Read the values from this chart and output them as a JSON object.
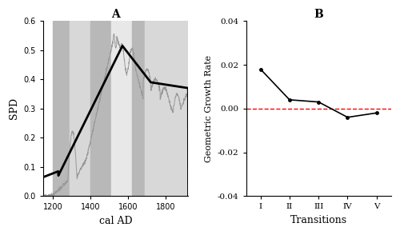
{
  "panel_a_title": "A",
  "panel_b_title": "B",
  "xlabel_a": "cal AD",
  "ylabel_a": "SPD",
  "xlabel_b": "Transitions",
  "ylabel_b": "Geometric Growth Rate",
  "xlim_a": [
    1150,
    1920
  ],
  "ylim_a": [
    0.0,
    0.6
  ],
  "yticks_a": [
    0.0,
    0.1,
    0.2,
    0.3,
    0.4,
    0.5,
    0.6
  ],
  "xticks_a": [
    1200,
    1400,
    1600,
    1800
  ],
  "ylim_b": [
    -0.04,
    0.04
  ],
  "yticks_b": [
    -0.04,
    -0.02,
    0.0,
    0.02,
    0.04
  ],
  "transitions": [
    "I",
    "II",
    "III",
    "IV",
    "V"
  ],
  "growth_rates": [
    0.018,
    0.004,
    0.003,
    -0.004,
    -0.002
  ],
  "transition_bands": [
    {
      "xmin": 1200,
      "xmax": 1290,
      "color": "#b8b8b8",
      "alpha": 1.0
    },
    {
      "xmin": 1290,
      "xmax": 1400,
      "color": "#d8d8d8",
      "alpha": 1.0
    },
    {
      "xmin": 1400,
      "xmax": 1510,
      "color": "#b8b8b8",
      "alpha": 1.0
    },
    {
      "xmin": 1510,
      "xmax": 1620,
      "color": "#e8e8e8",
      "alpha": 1.0
    },
    {
      "xmin": 1620,
      "xmax": 1690,
      "color": "#b8b8b8",
      "alpha": 1.0
    },
    {
      "xmin": 1690,
      "xmax": 1920,
      "color": "#d8d8d8",
      "alpha": 1.0
    }
  ],
  "background_color": "#ffffff",
  "thin_line_color": "#999999",
  "thick_line_color": "#000000",
  "dashed_line_color": "#ff0000",
  "figsize": [
    5.0,
    2.94
  ],
  "dpi": 100
}
